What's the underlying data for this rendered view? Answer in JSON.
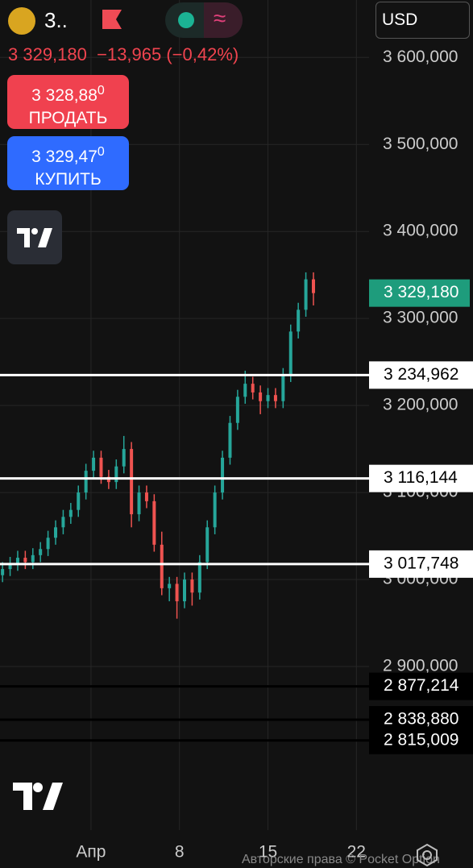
{
  "header": {
    "symbol": "3..",
    "price": "3 329,180",
    "change": "−13,965 (−0,42%)",
    "currency": "USD",
    "sell": {
      "price": "3 328,88",
      "price_tail": "0",
      "label": "ПРОДАТЬ"
    },
    "buy": {
      "price": "3 329,47",
      "price_tail": "0",
      "label": "КУПИТЬ"
    },
    "watermark": "Авторские права © Pocket Option"
  },
  "chart_data": {
    "type": "candlestick",
    "xlim": [
      -6.2,
      23.0
    ],
    "xticks": [
      {
        "value": 1,
        "label": "Апр"
      },
      8,
      15,
      22
    ],
    "ylim": [
      2712000,
      3666000
    ],
    "yticks": [
      {
        "value": 2900000,
        "label": "2 900,000"
      },
      {
        "value": 3000000,
        "label": "3 000,000"
      },
      {
        "value": 3100000,
        "label": "3 100,000"
      },
      {
        "value": 3200000,
        "label": "3 200,000"
      },
      {
        "value": 3300000,
        "label": "3 300,000"
      },
      {
        "value": 3400000,
        "label": "3 400,000"
      },
      {
        "value": 3500000,
        "label": "3 500,000"
      },
      {
        "value": 3600000,
        "label": "3 600,000"
      }
    ],
    "grid": true,
    "up_color": "#26a69a",
    "down_color": "#ef5350",
    "candles": {
      "x": [
        -6.0,
        -5.4,
        -4.8,
        -4.2,
        -3.6,
        -3.0,
        -2.4,
        -1.8,
        -1.2,
        -0.6,
        0.0,
        0.6,
        1.2,
        1.8,
        2.4,
        3.0,
        3.6,
        4.2,
        4.8,
        5.4,
        6.0,
        6.6,
        7.2,
        7.8,
        8.4,
        9.0,
        9.6,
        10.2,
        10.8,
        11.4,
        12.0,
        12.6,
        13.2,
        13.8,
        14.4,
        15.0,
        15.6,
        16.2,
        16.8,
        17.4,
        18.0,
        18.6
      ],
      "open": [
        3005000,
        3012000,
        3018000,
        3025000,
        3020000,
        3028000,
        3035000,
        3048000,
        3060000,
        3072000,
        3080000,
        3100000,
        3125000,
        3140000,
        3118000,
        3112000,
        3130000,
        3150000,
        3075000,
        3100000,
        3090000,
        3040000,
        2990000,
        2995000,
        2975000,
        3000000,
        2985000,
        3020000,
        3060000,
        3100000,
        3140000,
        3180000,
        3210000,
        3225000,
        3215000,
        3205000,
        3212000,
        3205000,
        3235000,
        3285000,
        3310000,
        3345000
      ],
      "high": [
        3020000,
        3026000,
        3033000,
        3033000,
        3036000,
        3043000,
        3056000,
        3068000,
        3080000,
        3088000,
        3108000,
        3133000,
        3148000,
        3148000,
        3126000,
        3138000,
        3165000,
        3158000,
        3108000,
        3108000,
        3098000,
        3055000,
        3003000,
        3003000,
        3008000,
        3008000,
        3028000,
        3068000,
        3108000,
        3148000,
        3188000,
        3218000,
        3240000,
        3233000,
        3223000,
        3220000,
        3220000,
        3243000,
        3293000,
        3318000,
        3353000,
        3353000
      ],
      "low": [
        2997000,
        3004000,
        3010000,
        3012000,
        3012000,
        3020000,
        3027000,
        3040000,
        3052000,
        3064000,
        3072000,
        3092000,
        3117000,
        3110000,
        3104000,
        3104000,
        3122000,
        3060000,
        3067000,
        3082000,
        3032000,
        2982000,
        2975000,
        2955000,
        2967000,
        2970000,
        2977000,
        3012000,
        3052000,
        3092000,
        3132000,
        3172000,
        3202000,
        3207000,
        3190000,
        3197000,
        3197000,
        3197000,
        3227000,
        3277000,
        3302000,
        3315000
      ],
      "close": [
        3012000,
        3018000,
        3025000,
        3020000,
        3028000,
        3035000,
        3048000,
        3060000,
        3072000,
        3080000,
        3100000,
        3125000,
        3140000,
        3118000,
        3112000,
        3130000,
        3150000,
        3075000,
        3100000,
        3090000,
        3040000,
        2990000,
        2995000,
        2975000,
        3000000,
        2985000,
        3020000,
        3060000,
        3100000,
        3140000,
        3180000,
        3210000,
        3225000,
        3215000,
        3205000,
        3212000,
        3205000,
        3235000,
        3285000,
        3310000,
        3345000,
        3329180
      ]
    },
    "last_price": {
      "value": 3329180,
      "label": "3 329,180",
      "color": "#1e9c7c"
    },
    "price_levels": [
      {
        "value": 3234962,
        "label": "3 234,962",
        "color": "#ffffff"
      },
      {
        "value": 3116144,
        "label": "3 116,144",
        "color": "#ffffff"
      },
      {
        "value": 3017748,
        "label": "3 017,748",
        "color": "#ffffff"
      },
      {
        "value": 2877214,
        "label": "2 877,214",
        "color": "#000000"
      },
      {
        "value": 2838880,
        "label": "2 838,880",
        "color": "#000000"
      },
      {
        "value": 2815009,
        "label": "2 815,009",
        "color": "#000000"
      }
    ]
  }
}
